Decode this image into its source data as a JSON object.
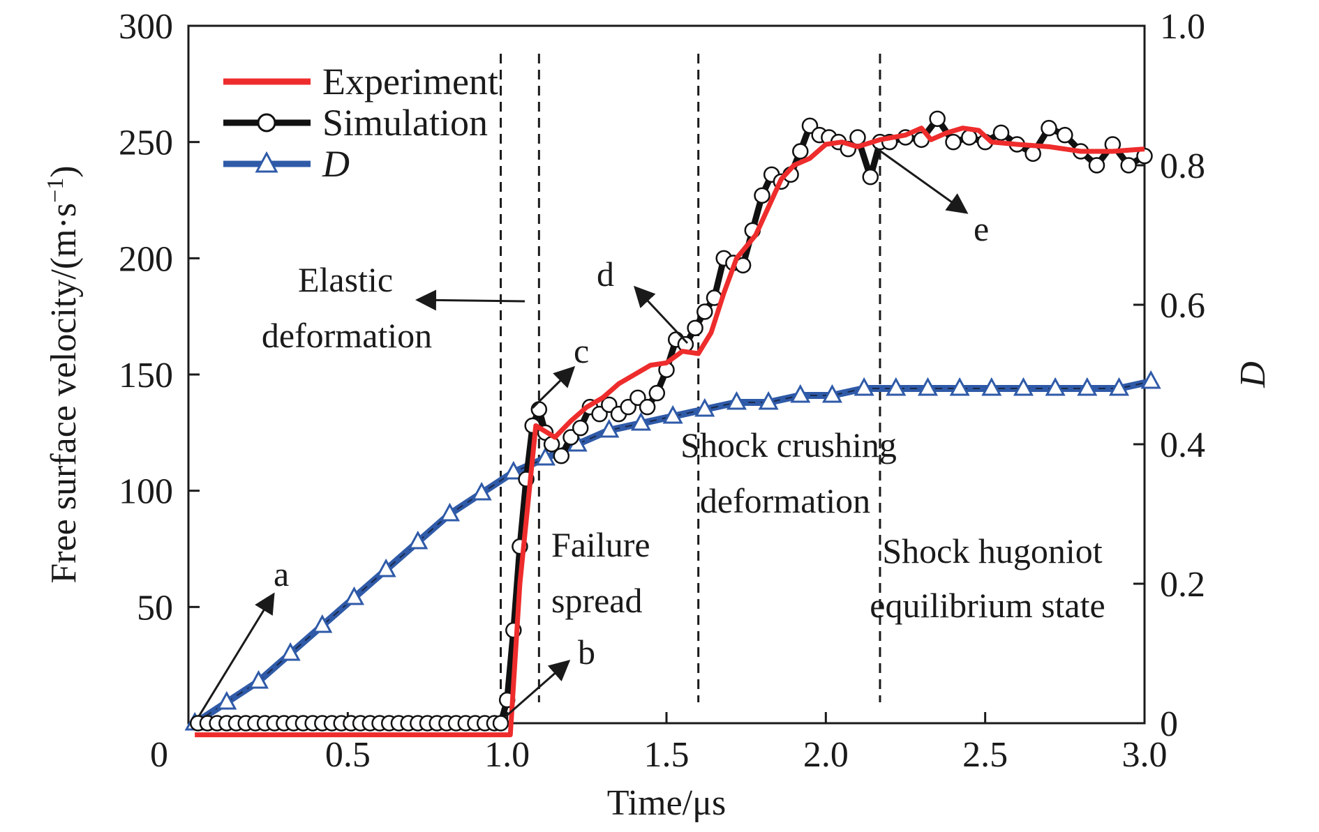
{
  "chart_data": {
    "type": "line",
    "xlabel": "Time/μs",
    "ylabel_left": "Free surface velocity/(m·s",
    "ylabel_left_sup": "−1",
    "ylabel_left_close": ")",
    "ylabel_right": "D",
    "xlim": [
      0,
      3.0
    ],
    "ylim_left": [
      0,
      300
    ],
    "ylim_right": [
      0,
      1.0
    ],
    "x_ticks": [
      0,
      0.5,
      1.0,
      1.5,
      2.0,
      2.5,
      3.0
    ],
    "x_tick_labels": [
      "0",
      "0.5",
      "1.0",
      "1.5",
      "2.0",
      "2.5",
      "3.0"
    ],
    "y_left_ticks": [
      50,
      100,
      150,
      200,
      250,
      300
    ],
    "y_left_tick_labels": [
      "50",
      "100",
      "150",
      "200",
      "250",
      "300"
    ],
    "y_right_ticks": [
      0,
      0.2,
      0.4,
      0.6,
      0.8,
      1.0
    ],
    "y_right_tick_labels": [
      "0",
      "0.2",
      "0.4",
      "0.6",
      "0.8",
      "1.0"
    ],
    "legend": {
      "placement": "top-left",
      "entries": [
        "Experiment",
        "Simulation",
        "D"
      ]
    },
    "colors": {
      "experiment": "#ee2c2c",
      "simulation": "#111111",
      "d": "#2f5aa8",
      "d_marker_fill": "#ffffff"
    },
    "vlines_x": [
      0.98,
      1.1,
      1.6,
      2.17
    ],
    "series": [
      {
        "name": "Experiment",
        "axis": "left",
        "x": [
          0.02,
          1.01,
          1.04,
          1.09,
          1.15,
          1.2,
          1.25,
          1.3,
          1.35,
          1.4,
          1.45,
          1.5,
          1.55,
          1.6,
          1.64,
          1.68,
          1.72,
          1.78,
          1.82,
          1.86,
          1.9,
          1.95,
          2.0,
          2.05,
          2.1,
          2.17,
          2.25,
          2.3,
          2.33,
          2.38,
          2.43,
          2.48,
          2.52,
          2.6,
          2.7,
          2.8,
          2.9,
          3.0
        ],
        "y": [
          -5,
          -5,
          60,
          128,
          123,
          130,
          136,
          140,
          146,
          150,
          154,
          155,
          160,
          159,
          168,
          185,
          200,
          210,
          222,
          234,
          240,
          243,
          249,
          250,
          248,
          251,
          253,
          256,
          251,
          254,
          256,
          255,
          250,
          249,
          248,
          246,
          246,
          247
        ]
      },
      {
        "name": "Simulation",
        "axis": "left",
        "x": [
          0.03,
          0.06,
          0.09,
          0.12,
          0.15,
          0.18,
          0.21,
          0.24,
          0.27,
          0.3,
          0.33,
          0.36,
          0.39,
          0.42,
          0.45,
          0.48,
          0.51,
          0.54,
          0.57,
          0.6,
          0.63,
          0.66,
          0.69,
          0.72,
          0.75,
          0.78,
          0.81,
          0.84,
          0.87,
          0.9,
          0.93,
          0.96,
          0.98,
          1.0,
          1.02,
          1.04,
          1.06,
          1.08,
          1.1,
          1.12,
          1.14,
          1.17,
          1.2,
          1.23,
          1.26,
          1.29,
          1.32,
          1.35,
          1.38,
          1.41,
          1.44,
          1.47,
          1.5,
          1.53,
          1.56,
          1.59,
          1.62,
          1.65,
          1.68,
          1.71,
          1.74,
          1.77,
          1.8,
          1.83,
          1.86,
          1.89,
          1.92,
          1.95,
          1.98,
          2.01,
          2.04,
          2.07,
          2.1,
          2.14,
          2.17,
          2.2,
          2.25,
          2.3,
          2.35,
          2.4,
          2.45,
          2.5,
          2.55,
          2.6,
          2.65,
          2.7,
          2.75,
          2.8,
          2.85,
          2.9,
          2.95,
          3.0
        ],
        "y": [
          0,
          0,
          0,
          0,
          0,
          0,
          0,
          0,
          0,
          0,
          0,
          0,
          0,
          0,
          0,
          0,
          0,
          0,
          0,
          0,
          0,
          0,
          0,
          0,
          0,
          0,
          0,
          0,
          0,
          0,
          0,
          0,
          0,
          10,
          40,
          76,
          105,
          128,
          135,
          125,
          120,
          115,
          123,
          127,
          136,
          133,
          137,
          133,
          136,
          140,
          136,
          142,
          152,
          165,
          163,
          170,
          177,
          183,
          200,
          198,
          197,
          212,
          227,
          236,
          233,
          236,
          246,
          257,
          253,
          252,
          250,
          247,
          252,
          235,
          250,
          250,
          252,
          251,
          260,
          250,
          252,
          250,
          254,
          249,
          245,
          256,
          253,
          246,
          240,
          249,
          240,
          244
        ]
      },
      {
        "name": "D",
        "axis": "right",
        "x": [
          0.02,
          0.12,
          0.22,
          0.32,
          0.42,
          0.52,
          0.62,
          0.72,
          0.82,
          0.92,
          1.02,
          1.12,
          1.22,
          1.32,
          1.42,
          1.52,
          1.62,
          1.72,
          1.82,
          1.92,
          2.02,
          2.12,
          2.22,
          2.32,
          2.42,
          2.52,
          2.62,
          2.72,
          2.82,
          2.92,
          3.02
        ],
        "y": [
          0.0,
          0.03,
          0.06,
          0.1,
          0.14,
          0.18,
          0.22,
          0.26,
          0.3,
          0.33,
          0.36,
          0.38,
          0.4,
          0.42,
          0.43,
          0.44,
          0.45,
          0.46,
          0.46,
          0.47,
          0.47,
          0.48,
          0.48,
          0.48,
          0.48,
          0.48,
          0.48,
          0.48,
          0.48,
          0.48,
          0.49
        ]
      }
    ],
    "annotations": {
      "a": "a",
      "b": "b",
      "c": "c",
      "d": "d",
      "e": "e",
      "elastic_1": "Elastic",
      "elastic_2": "deformation",
      "failure_1": "Failure",
      "failure_2": "spread",
      "shock_1": "Shock crushing",
      "shock_2": "deformation",
      "hugoniot_1": "Shock hugoniot",
      "hugoniot_2": "equilibrium state"
    }
  }
}
